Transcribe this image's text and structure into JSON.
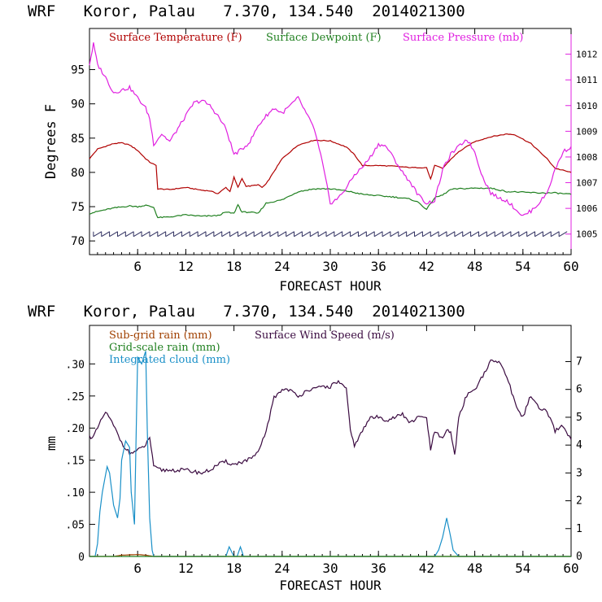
{
  "colors": {
    "temperature": "#b00000",
    "dewpoint": "#208020",
    "pressure": "#e020e0",
    "wind": "#3a0a40",
    "barbs": "#303060",
    "subgrid": "#a04000",
    "gridscale": "#208020",
    "cloud": "#1a90c8",
    "axis": "#000000"
  },
  "chart_data": [
    {
      "type": "line",
      "title": "WRF   Koror, Palau   7.370, 134.540  2014021300",
      "xlabel": "FORECAST HOUR",
      "ylabel": "Degrees F",
      "xlim": [
        0,
        60
      ],
      "xticks": [
        "6",
        "12",
        "18",
        "24",
        "30",
        "36",
        "42",
        "48",
        "54",
        "60"
      ],
      "ylim": [
        68,
        101
      ],
      "yticks": [
        "70",
        "75",
        "80",
        "85",
        "90",
        "95"
      ],
      "y2lim": [
        1004.2,
        1013.0
      ],
      "y2ticks": [
        "1005",
        "1006",
        "1007",
        "1008",
        "1009",
        "1010",
        "1011",
        "1012"
      ],
      "legend": [
        "Surface Temperature (F)",
        "Surface Dewpoint (F)",
        "Surface Pressure (mb)"
      ],
      "series": [
        {
          "name": "Surface Temperature (F)",
          "axis": "left",
          "x": [
            0,
            1,
            2,
            3,
            4,
            5,
            6,
            7,
            7.5,
            8.3,
            8.5,
            10,
            12,
            14,
            15,
            16,
            17,
            17.5,
            18,
            18.5,
            19,
            19.5,
            20,
            21,
            21.5,
            22,
            24,
            26,
            28,
            30,
            32,
            33,
            34,
            36,
            38,
            40,
            42,
            42.5,
            43,
            44,
            45,
            46,
            48,
            50,
            52,
            53,
            55,
            57,
            58,
            60
          ],
          "values": [
            82.0,
            83.4,
            83.8,
            84.2,
            84.3,
            84.0,
            83.2,
            82.0,
            81.5,
            81.0,
            77.6,
            77.5,
            77.8,
            77.4,
            77.3,
            76.9,
            77.8,
            77.2,
            79.3,
            77.8,
            79.1,
            78.0,
            78.0,
            78.2,
            77.8,
            78.3,
            82.0,
            84.0,
            84.7,
            84.6,
            83.7,
            82.6,
            81.0,
            81.0,
            80.9,
            80.7,
            80.7,
            79.0,
            81.0,
            80.6,
            81.9,
            83.0,
            84.5,
            85.2,
            85.6,
            85.5,
            84.2,
            82.0,
            80.6,
            80.0
          ]
        },
        {
          "name": "Surface Dewpoint (F)",
          "axis": "left",
          "x": [
            0,
            1,
            3,
            5,
            6,
            7,
            8,
            8.5,
            10,
            12,
            14,
            16,
            17,
            18,
            18.5,
            19,
            20,
            21,
            22,
            24,
            26,
            28,
            30,
            32,
            34,
            36,
            38,
            40,
            41,
            42,
            43,
            44,
            45,
            46,
            48,
            50,
            52,
            54,
            56,
            58,
            60
          ],
          "values": [
            74.0,
            74.3,
            74.8,
            75.1,
            75.0,
            75.2,
            74.9,
            73.4,
            73.5,
            73.8,
            73.6,
            73.7,
            74.2,
            74.0,
            75.3,
            74.2,
            74.2,
            74.0,
            75.5,
            76.0,
            77.2,
            77.6,
            77.6,
            77.3,
            76.8,
            76.6,
            76.4,
            76.1,
            75.6,
            74.6,
            76.3,
            76.7,
            77.5,
            77.6,
            77.7,
            77.7,
            77.2,
            77.1,
            77.0,
            77.0,
            76.8
          ]
        },
        {
          "name": "Surface Pressure (mb)",
          "axis": "right",
          "x": [
            0,
            0.5,
            1,
            2,
            3,
            4,
            5,
            6,
            7,
            7.5,
            8,
            9,
            10,
            11,
            12,
            13,
            14,
            15,
            16,
            17,
            18,
            19,
            20,
            21,
            22,
            23,
            24,
            25,
            26,
            27,
            28,
            29,
            30,
            31,
            32,
            33,
            34,
            35,
            36,
            37,
            38,
            39,
            40,
            41,
            42,
            43,
            44,
            45,
            46,
            47,
            48,
            49,
            50,
            51,
            52,
            53,
            54,
            55,
            56,
            57,
            58,
            59,
            60
          ],
          "values": [
            1011.6,
            1012.4,
            1011.6,
            1011.1,
            1010.5,
            1010.6,
            1010.7,
            1010.3,
            1009.9,
            1009.5,
            1008.5,
            1008.9,
            1008.6,
            1009.1,
            1009.6,
            1010.1,
            1010.2,
            1010.0,
            1009.6,
            1009.1,
            1008.1,
            1008.3,
            1008.6,
            1009.2,
            1009.6,
            1009.9,
            1009.7,
            1010.0,
            1010.3,
            1009.7,
            1009.1,
            1007.8,
            1006.2,
            1006.4,
            1006.8,
            1007.3,
            1007.6,
            1008.0,
            1008.5,
            1008.4,
            1007.9,
            1007.4,
            1007.0,
            1006.5,
            1006.2,
            1006.3,
            1007.5,
            1008.1,
            1008.4,
            1008.7,
            1008.2,
            1007.2,
            1006.6,
            1006.4,
            1006.3,
            1006.0,
            1005.7,
            1005.9,
            1006.2,
            1006.6,
            1007.5,
            1008.2,
            1008.4
          ]
        },
        {
          "name": "Wind barbs",
          "axis": "left",
          "level": 71
        }
      ]
    },
    {
      "type": "line",
      "title": "WRF   Koror, Palau   7.370, 134.540  2014021300",
      "xlabel": "FORECAST HOUR",
      "ylabel": "mm",
      "xlim": [
        0,
        60
      ],
      "xticks": [
        "6",
        "12",
        "18",
        "24",
        "30",
        "36",
        "42",
        "48",
        "54",
        "60"
      ],
      "ylim": [
        0,
        0.36
      ],
      "yticks": [
        "0",
        ".05",
        ".10",
        ".15",
        ".20",
        ".25",
        ".30"
      ],
      "y2lim": [
        0,
        8.3
      ],
      "y2ticks": [
        "0",
        "1",
        "2",
        "3",
        "4",
        "5",
        "6",
        "7"
      ],
      "legend": [
        "Sub-grid rain (mm)",
        "Surface Wind Speed (m/s)",
        "Grid-scale rain (mm)",
        "Integrated cloud (mm)"
      ],
      "series": [
        {
          "name": "Surface Wind Speed (m/s)",
          "axis": "right",
          "x": [
            0,
            0.5,
            1,
            2,
            3,
            4,
            5,
            6,
            7,
            7.5,
            8,
            9,
            10,
            12,
            14,
            15,
            16,
            17,
            18,
            19,
            20,
            21,
            22,
            23,
            24,
            25,
            26,
            27,
            28,
            29,
            30,
            31,
            32,
            32.5,
            33,
            34,
            35,
            36,
            37,
            38,
            39,
            40,
            41,
            42,
            42.5,
            43,
            44,
            44.5,
            45,
            45.5,
            46,
            47,
            48,
            49,
            50,
            51,
            52,
            53,
            54,
            55,
            56,
            57,
            58,
            59,
            60
          ],
          "values": [
            4.3,
            4.3,
            4.6,
            5.2,
            4.7,
            4.1,
            3.7,
            3.8,
            4.0,
            4.3,
            3.2,
            3.1,
            3.1,
            3.1,
            3.0,
            3.1,
            3.3,
            3.4,
            3.3,
            3.4,
            3.5,
            3.7,
            4.5,
            5.7,
            6.0,
            6.0,
            5.7,
            6.0,
            6.0,
            6.1,
            6.1,
            6.3,
            6.0,
            4.5,
            4.0,
            4.5,
            5.0,
            5.0,
            4.9,
            5.0,
            5.1,
            4.8,
            5.0,
            5.0,
            3.8,
            4.5,
            4.2,
            4.5,
            4.5,
            3.6,
            5.0,
            5.8,
            6.0,
            6.5,
            7.0,
            7.0,
            6.5,
            5.5,
            5.0,
            5.8,
            5.3,
            5.2,
            4.5,
            4.7,
            4.2
          ]
        },
        {
          "name": "Integrated cloud (mm)",
          "axis": "left",
          "x": [
            0,
            0.7,
            1,
            1.3,
            1.6,
            1.9,
            2.2,
            2.5,
            3,
            3.5,
            3.8,
            4,
            4.5,
            5,
            5.2,
            5.6,
            6,
            6.5,
            7,
            7.2,
            7.5,
            7.8,
            8,
            16.5,
            17,
            17.4,
            18,
            18.4,
            18.8,
            19.2,
            43,
            43.5,
            44,
            44.5,
            45,
            45.3,
            46,
            60
          ],
          "values": [
            0,
            0,
            0.02,
            0.07,
            0.1,
            0.12,
            0.14,
            0.13,
            0.08,
            0.06,
            0.09,
            0.15,
            0.18,
            0.17,
            0.1,
            0.05,
            0.31,
            0.3,
            0.32,
            0.2,
            0.06,
            0.01,
            0,
            0,
            0,
            0.015,
            0,
            0,
            0.015,
            0,
            0,
            0.01,
            0.03,
            0.06,
            0.03,
            0.01,
            0,
            0
          ]
        },
        {
          "name": "Sub-grid rain (mm)",
          "axis": "left",
          "x": [
            0,
            3,
            4,
            6,
            7,
            8,
            60
          ],
          "values": [
            0,
            0,
            0.002,
            0.003,
            0.002,
            0,
            0
          ]
        },
        {
          "name": "Grid-scale rain (mm)",
          "axis": "left",
          "x": [
            0,
            60
          ],
          "values": [
            0,
            0
          ]
        }
      ]
    }
  ]
}
